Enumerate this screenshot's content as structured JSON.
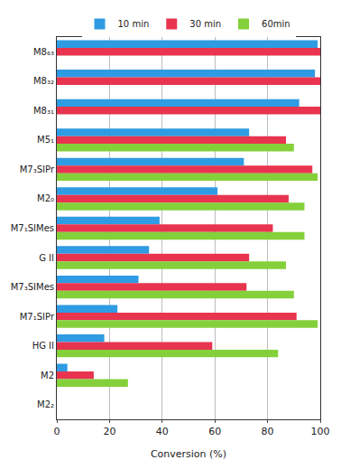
{
  "chart_data": {
    "type": "bar",
    "orientation": "horizontal",
    "x_label": "Conversion (%)",
    "categories": [
      "M8₆₃",
      "M8₃₂",
      "M8₃₁",
      "M5₁",
      "M7₃SIPr",
      "M2₀",
      "M7₁SIMes",
      "G II",
      "M7₃SIMes",
      "M7₁SIPr",
      "HG II",
      "M2",
      "M2₂"
    ],
    "series": [
      {
        "name": "10 min",
        "color": "#2f9be3",
        "values": [
          99,
          98,
          92,
          73,
          71,
          61,
          39,
          35,
          31,
          23,
          18,
          4,
          0
        ]
      },
      {
        "name": "30 min",
        "color": "#e8344f",
        "values": [
          100,
          100,
          100,
          87,
          97,
          88,
          82,
          73,
          72,
          91,
          59,
          14,
          0
        ]
      },
      {
        "name": "60min",
        "color": "#84d03a",
        "values": [
          null,
          null,
          null,
          90,
          99,
          94,
          94,
          87,
          90,
          99,
          84,
          27,
          0
        ]
      }
    ],
    "xlim": [
      0,
      100
    ],
    "xticks": [
      0,
      20,
      40,
      60,
      80,
      100
    ],
    "grid": true,
    "legend": "top"
  }
}
